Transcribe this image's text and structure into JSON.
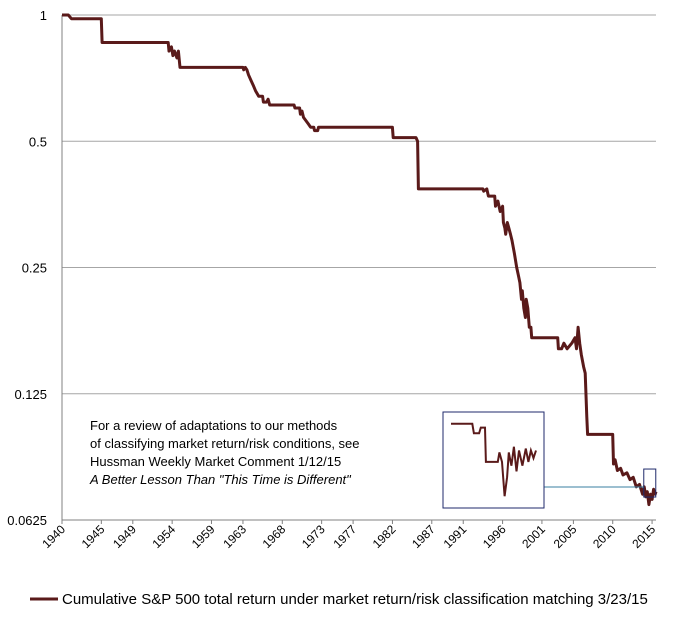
{
  "colors": {
    "series": "#5a1a1a",
    "grid": "#a6a6a6",
    "axis": "#808080",
    "inset_frame": "#1f2a6b",
    "connector": "#3a7fa0"
  },
  "annotation": {
    "line1": "For a review of adaptations to our methods",
    "line2": "of classifying market return/risk conditions, see",
    "line3": "Hussman Weekly Market Comment 1/12/15",
    "line4": "A Better Lesson Than \"This Time is Different\""
  },
  "chart_data": {
    "type": "line",
    "title": "",
    "xlabel": "",
    "ylabel": "",
    "y_scale": "log2",
    "ylim": [
      0.0625,
      1
    ],
    "xlim": [
      1940,
      2015.5
    ],
    "grid": "horizontal",
    "legend_position": "bottom",
    "y_ticks": [
      {
        "value": 1,
        "label": "1"
      },
      {
        "value": 0.5,
        "label": "0.5"
      },
      {
        "value": 0.25,
        "label": "0.25"
      },
      {
        "value": 0.125,
        "label": "0.125"
      },
      {
        "value": 0.0625,
        "label": "0.0625"
      }
    ],
    "x_ticks": [
      {
        "value": 1940,
        "label": "1940"
      },
      {
        "value": 1945,
        "label": "1945"
      },
      {
        "value": 1949,
        "label": "1949"
      },
      {
        "value": 1954,
        "label": "1954"
      },
      {
        "value": 1959,
        "label": "1959"
      },
      {
        "value": 1963,
        "label": "1963"
      },
      {
        "value": 1968,
        "label": "1968"
      },
      {
        "value": 1973,
        "label": "1973"
      },
      {
        "value": 1977,
        "label": "1977"
      },
      {
        "value": 1982,
        "label": "1982"
      },
      {
        "value": 1987,
        "label": "1987"
      },
      {
        "value": 1991,
        "label": "1991"
      },
      {
        "value": 1996,
        "label": "1996"
      },
      {
        "value": 2001,
        "label": "2001"
      },
      {
        "value": 2005,
        "label": "2005"
      },
      {
        "value": 2010,
        "label": "2010"
      },
      {
        "value": 2015,
        "label": "2015"
      }
    ],
    "series": [
      {
        "name": "Cumulative S&P 500 total return under market return/risk classification matching 3/23/15",
        "points": [
          [
            1940.0,
            1.0
          ],
          [
            1940.8,
            1.0
          ],
          [
            1941.2,
            0.98
          ],
          [
            1945.0,
            0.98
          ],
          [
            1945.1,
            0.86
          ],
          [
            1953.5,
            0.86
          ],
          [
            1953.6,
            0.82
          ],
          [
            1953.9,
            0.84
          ],
          [
            1954.1,
            0.8
          ],
          [
            1954.3,
            0.82
          ],
          [
            1954.6,
            0.79
          ],
          [
            1954.8,
            0.82
          ],
          [
            1955.0,
            0.75
          ],
          [
            1963.0,
            0.75
          ],
          [
            1963.1,
            0.74
          ],
          [
            1963.3,
            0.75
          ],
          [
            1963.5,
            0.74
          ],
          [
            1963.7,
            0.72
          ],
          [
            1964.0,
            0.7
          ],
          [
            1964.3,
            0.68
          ],
          [
            1964.6,
            0.66
          ],
          [
            1965.0,
            0.64
          ],
          [
            1965.5,
            0.64
          ],
          [
            1965.6,
            0.62
          ],
          [
            1966.0,
            0.62
          ],
          [
            1966.2,
            0.63
          ],
          [
            1966.4,
            0.61
          ],
          [
            1969.5,
            0.61
          ],
          [
            1969.6,
            0.6
          ],
          [
            1970.2,
            0.6
          ],
          [
            1970.3,
            0.58
          ],
          [
            1970.5,
            0.59
          ],
          [
            1970.7,
            0.57
          ],
          [
            1971.0,
            0.56
          ],
          [
            1971.3,
            0.55
          ],
          [
            1971.6,
            0.54
          ],
          [
            1972.0,
            0.54
          ],
          [
            1972.1,
            0.53
          ],
          [
            1972.5,
            0.53
          ],
          [
            1972.6,
            0.54
          ],
          [
            1982.0,
            0.54
          ],
          [
            1982.1,
            0.51
          ],
          [
            1985.0,
            0.51
          ],
          [
            1985.2,
            0.5
          ],
          [
            1985.3,
            0.385
          ],
          [
            1993.5,
            0.385
          ],
          [
            1993.6,
            0.38
          ],
          [
            1994.0,
            0.385
          ],
          [
            1994.2,
            0.37
          ],
          [
            1995.0,
            0.37
          ],
          [
            1995.1,
            0.35
          ],
          [
            1995.4,
            0.36
          ],
          [
            1995.7,
            0.34
          ],
          [
            1996.0,
            0.35
          ],
          [
            1996.1,
            0.32
          ],
          [
            1996.3,
            0.31
          ],
          [
            1996.4,
            0.3
          ],
          [
            1996.6,
            0.32
          ],
          [
            1996.8,
            0.31
          ],
          [
            1997.0,
            0.3
          ],
          [
            1997.2,
            0.29
          ],
          [
            1997.5,
            0.27
          ],
          [
            1997.8,
            0.25
          ],
          [
            1998.0,
            0.24
          ],
          [
            1998.2,
            0.23
          ],
          [
            1998.4,
            0.21
          ],
          [
            1998.5,
            0.22
          ],
          [
            1998.7,
            0.2
          ],
          [
            1998.9,
            0.19
          ],
          [
            1999.0,
            0.21
          ],
          [
            1999.2,
            0.2
          ],
          [
            1999.4,
            0.18
          ],
          [
            1999.6,
            0.18
          ],
          [
            1999.7,
            0.17
          ],
          [
            2003.0,
            0.17
          ],
          [
            2003.1,
            0.16
          ],
          [
            2003.5,
            0.16
          ],
          [
            2003.8,
            0.165
          ],
          [
            2004.2,
            0.16
          ],
          [
            2004.8,
            0.165
          ],
          [
            2005.2,
            0.17
          ],
          [
            2005.4,
            0.16
          ],
          [
            2005.6,
            0.18
          ],
          [
            2005.8,
            0.165
          ],
          [
            2006.0,
            0.155
          ],
          [
            2006.3,
            0.145
          ],
          [
            2006.5,
            0.14
          ],
          [
            2006.7,
            0.11
          ],
          [
            2006.8,
            0.1
          ],
          [
            2010.0,
            0.1
          ],
          [
            2010.1,
            0.085
          ],
          [
            2010.3,
            0.087
          ],
          [
            2010.6,
            0.082
          ],
          [
            2011.0,
            0.083
          ],
          [
            2011.3,
            0.08
          ],
          [
            2011.8,
            0.081
          ],
          [
            2012.2,
            0.078
          ],
          [
            2012.6,
            0.079
          ],
          [
            2013.0,
            0.075
          ],
          [
            2013.4,
            0.076
          ],
          [
            2013.8,
            0.072
          ],
          [
            2014.0,
            0.075
          ],
          [
            2014.2,
            0.071
          ],
          [
            2014.4,
            0.073
          ],
          [
            2014.6,
            0.068
          ],
          [
            2014.8,
            0.072
          ],
          [
            2015.0,
            0.07
          ],
          [
            2015.2,
            0.074
          ],
          [
            2015.4,
            0.072
          ],
          [
            2015.5,
            0.073
          ]
        ]
      }
    ],
    "inset_points": [
      [
        0.0,
        0.1
      ],
      [
        0.25,
        0.1
      ],
      [
        0.27,
        0.095
      ],
      [
        0.33,
        0.095
      ],
      [
        0.35,
        0.098
      ],
      [
        0.4,
        0.098
      ],
      [
        0.41,
        0.08
      ],
      [
        0.55,
        0.08
      ],
      [
        0.57,
        0.085
      ],
      [
        0.6,
        0.08
      ],
      [
        0.63,
        0.062
      ],
      [
        0.66,
        0.072
      ],
      [
        0.68,
        0.085
      ],
      [
        0.71,
        0.078
      ],
      [
        0.74,
        0.088
      ],
      [
        0.77,
        0.075
      ],
      [
        0.8,
        0.086
      ],
      [
        0.84,
        0.078
      ],
      [
        0.88,
        0.087
      ],
      [
        0.91,
        0.08
      ],
      [
        0.94,
        0.086
      ],
      [
        0.97,
        0.082
      ],
      [
        1.0,
        0.086
      ]
    ]
  }
}
